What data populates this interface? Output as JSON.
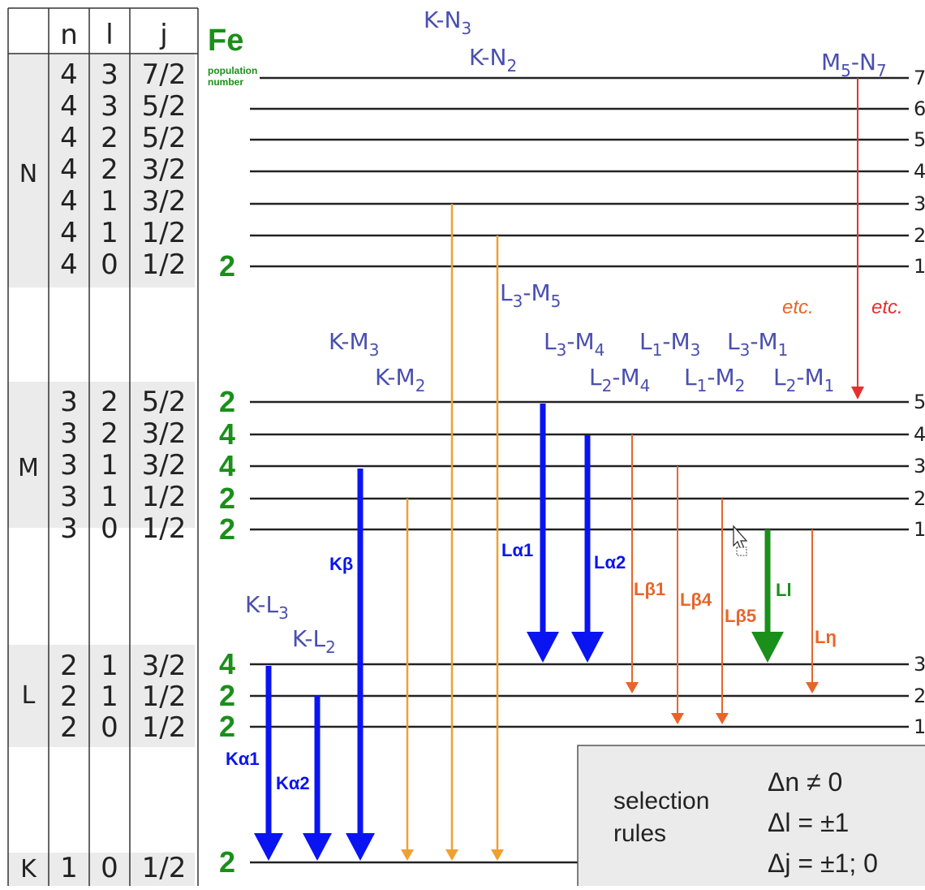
{
  "table": {
    "headers": {
      "n": "n",
      "l": "l",
      "j": "j"
    },
    "shells": {
      "N": "N",
      "M": "M",
      "L": "L",
      "K": "K"
    },
    "rows": [
      {
        "n": "4",
        "l": "3",
        "j": "7/2"
      },
      {
        "n": "4",
        "l": "3",
        "j": "5/2"
      },
      {
        "n": "4",
        "l": "2",
        "j": "5/2"
      },
      {
        "n": "4",
        "l": "2",
        "j": "3/2"
      },
      {
        "n": "4",
        "l": "1",
        "j": "3/2"
      },
      {
        "n": "4",
        "l": "1",
        "j": "1/2"
      },
      {
        "n": "4",
        "l": "0",
        "j": "1/2"
      },
      {
        "n": "3",
        "l": "2",
        "j": "5/2"
      },
      {
        "n": "3",
        "l": "2",
        "j": "3/2"
      },
      {
        "n": "3",
        "l": "1",
        "j": "3/2"
      },
      {
        "n": "3",
        "l": "1",
        "j": "1/2"
      },
      {
        "n": "3",
        "l": "0",
        "j": "1/2"
      },
      {
        "n": "2",
        "l": "1",
        "j": "3/2"
      },
      {
        "n": "2",
        "l": "1",
        "j": "1/2"
      },
      {
        "n": "2",
        "l": "0",
        "j": "1/2"
      },
      {
        "n": "1",
        "l": "0",
        "j": "1/2"
      }
    ]
  },
  "element": {
    "symbol": "Fe",
    "caption_line1": "population",
    "caption_line2": "number"
  },
  "population_numbers": {
    "N1": "2",
    "M5": "2",
    "M4": "4",
    "M3": "4",
    "M2": "2",
    "M1": "2",
    "L3": "4",
    "L2": "2",
    "L1": "2",
    "K": "2"
  },
  "level_indices": {
    "N7": "7",
    "N6": "6",
    "N5": "5",
    "N4": "4",
    "N3": "3",
    "N2": "2",
    "N1": "1",
    "M5": "5",
    "M4": "4",
    "M3": "3",
    "M2": "2",
    "M1": "1",
    "L3": "3",
    "L2": "2",
    "L1": "1"
  },
  "transition_labels": {
    "K_N3": {
      "a": "K-N",
      "s": "3"
    },
    "K_N2": {
      "a": "K-N",
      "s": "2"
    },
    "M5_N7": {
      "a": "M",
      "s1": "5",
      "b": "-N",
      "s2": "7"
    },
    "L3_M5": {
      "a": "L",
      "s1": "3",
      "b": "-M",
      "s2": "5"
    },
    "K_M3": {
      "a": "K-M",
      "s": "3"
    },
    "K_M2": {
      "a": "K-M",
      "s": "2"
    },
    "L3_M4": {
      "a": "L",
      "s1": "3",
      "b": "-M",
      "s2": "4"
    },
    "L1_M3": {
      "a": "L",
      "s1": "1",
      "b": "-M",
      "s2": "3"
    },
    "L3_M1": {
      "a": "L",
      "s1": "3",
      "b": "-M",
      "s2": "1"
    },
    "L2_M4": {
      "a": "L",
      "s1": "2",
      "b": "-M",
      "s2": "4"
    },
    "L1_M2": {
      "a": "L",
      "s1": "1",
      "b": "-M",
      "s2": "2"
    },
    "L2_M1": {
      "a": "L",
      "s1": "2",
      "b": "-M",
      "s2": "1"
    },
    "K_L3": {
      "a": "K-L",
      "s": "3"
    },
    "K_L2": {
      "a": "K-L",
      "s": "2"
    }
  },
  "line_names": {
    "Ka1": {
      "main": "K",
      "greek": "α1"
    },
    "Ka2": {
      "main": "K",
      "greek": "α2"
    },
    "Kb": {
      "main": "K",
      "greek": "β"
    },
    "La1": {
      "main": "L",
      "greek": "α1"
    },
    "La2": {
      "main": "L",
      "greek": "α2"
    },
    "Lb1": {
      "main": "L",
      "greek": "β1"
    },
    "Lb4": {
      "main": "L",
      "greek": "β4"
    },
    "Lb5": {
      "main": "L",
      "greek": "β5"
    },
    "Ll": {
      "main": "Ll"
    },
    "Leta": {
      "main": "L",
      "greek": "η"
    }
  },
  "etc": {
    "orange": "etc.",
    "red": "etc."
  },
  "selection_rules": {
    "title_line1": "selection",
    "title_line2": "rules",
    "rule_n": "Δn ≠ 0",
    "rule_l": "Δl = ±1",
    "rule_j": "Δj = ±1; 0"
  },
  "colors": {
    "green": "#1a8f1a",
    "blue_arrow": "#0a14f0",
    "orange_arrow": "#f0a030",
    "redorange_arrow": "#e8652a",
    "red_arrow": "#e53030",
    "label_blue": "#4a4fb0",
    "shell_bg": "#ebebeb"
  }
}
